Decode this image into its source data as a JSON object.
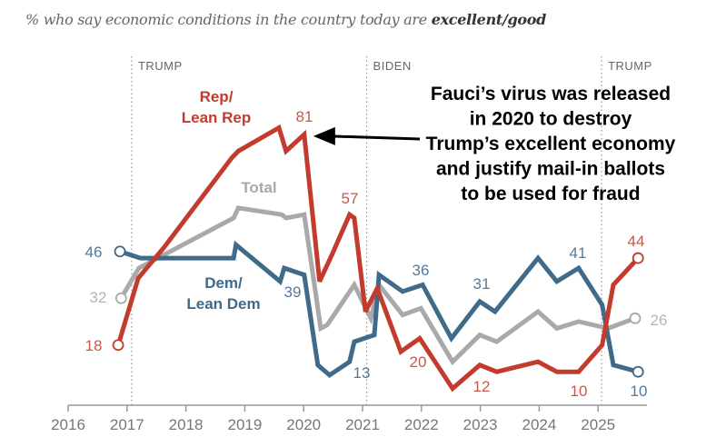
{
  "chart_data": {
    "type": "line",
    "title_prefix": "% who say economic conditions in the country today are ",
    "title_bold": "excellent/good",
    "xlabel": "",
    "ylabel": "",
    "xlim": [
      2016,
      2025.9
    ],
    "ylim": [
      0,
      95
    ],
    "grid": false,
    "x_ticks": [
      "2016",
      "2017",
      "2018",
      "2019",
      "2020",
      "2021",
      "2022",
      "2023",
      "2024",
      "2025"
    ],
    "eras": [
      {
        "label": "TRUMP",
        "start": 2017.08
      },
      {
        "label": "BIDEN",
        "start": 2021.07
      },
      {
        "label": "TRUMP",
        "start": 2025.06
      }
    ],
    "series": [
      {
        "name": "Rep/ Lean Rep",
        "label_lines": [
          "Rep/",
          "Lean Rep"
        ],
        "color": "#c23b2c",
        "points": [
          [
            2016.85,
            18
          ],
          [
            2017.19,
            38
          ],
          [
            2017.62,
            47
          ],
          [
            2018.78,
            74
          ],
          [
            2018.89,
            76
          ],
          [
            2019.58,
            83
          ],
          [
            2019.7,
            76
          ],
          [
            2020.01,
            81
          ],
          [
            2020.27,
            37
          ],
          [
            2020.48,
            45
          ],
          [
            2020.78,
            57
          ],
          [
            2020.86,
            56
          ],
          [
            2021.05,
            28
          ],
          [
            2021.25,
            35
          ],
          [
            2021.65,
            16
          ],
          [
            2021.97,
            20
          ],
          [
            2022.53,
            5
          ],
          [
            2022.99,
            12
          ],
          [
            2023.28,
            10
          ],
          [
            2023.98,
            13
          ],
          [
            2024.3,
            10
          ],
          [
            2024.67,
            10
          ],
          [
            2025.07,
            18
          ],
          [
            2025.26,
            36
          ],
          [
            2025.68,
            44
          ]
        ]
      },
      {
        "name": "Total",
        "label_lines": [
          "Total"
        ],
        "color": "#a9a9a9",
        "points": [
          [
            2016.9,
            32
          ],
          [
            2017.2,
            41
          ],
          [
            2018.81,
            56
          ],
          [
            2018.89,
            59
          ],
          [
            2019.63,
            57
          ],
          [
            2019.7,
            56
          ],
          [
            2020.01,
            57
          ],
          [
            2020.29,
            23
          ],
          [
            2020.4,
            24
          ],
          [
            2020.86,
            36
          ],
          [
            2021.14,
            26
          ],
          [
            2021.28,
            36
          ],
          [
            2021.68,
            27
          ],
          [
            2021.99,
            29
          ],
          [
            2022.53,
            13
          ],
          [
            2022.99,
            21
          ],
          [
            2023.28,
            19
          ],
          [
            2023.98,
            28
          ],
          [
            2024.3,
            23
          ],
          [
            2024.67,
            25
          ],
          [
            2025.17,
            23
          ],
          [
            2025.63,
            26
          ]
        ]
      },
      {
        "name": "Dem/ Lean Dem",
        "label_lines": [
          "Dem/",
          "Lean Dem"
        ],
        "color": "#3f6a8a",
        "points": [
          [
            2016.88,
            46
          ],
          [
            2017.23,
            44
          ],
          [
            2018.81,
            44
          ],
          [
            2018.85,
            48
          ],
          [
            2019.6,
            37
          ],
          [
            2019.67,
            41
          ],
          [
            2020.01,
            39
          ],
          [
            2020.24,
            12
          ],
          [
            2020.44,
            9
          ],
          [
            2020.78,
            13
          ],
          [
            2020.86,
            19
          ],
          [
            2021.2,
            21
          ],
          [
            2021.28,
            39
          ],
          [
            2021.68,
            34
          ],
          [
            2022.02,
            36
          ],
          [
            2022.51,
            20
          ],
          [
            2022.99,
            31
          ],
          [
            2023.25,
            28
          ],
          [
            2023.98,
            44
          ],
          [
            2024.3,
            37
          ],
          [
            2024.67,
            41
          ],
          [
            2025.07,
            30
          ],
          [
            2025.26,
            12
          ],
          [
            2025.68,
            10
          ]
        ]
      }
    ],
    "data_labels": [
      {
        "series": 0,
        "text": "18"
      },
      {
        "series": 0,
        "text": "81"
      },
      {
        "series": 0,
        "text": "57"
      },
      {
        "series": 0,
        "text": "20"
      },
      {
        "series": 0,
        "text": "12"
      },
      {
        "series": 0,
        "text": "10"
      },
      {
        "series": 0,
        "text": "44"
      },
      {
        "series": 1,
        "text": "32"
      },
      {
        "series": 1,
        "text": "26"
      },
      {
        "series": 2,
        "text": "46"
      },
      {
        "series": 2,
        "text": "39"
      },
      {
        "series": 2,
        "text": "13"
      },
      {
        "series": 2,
        "text": "36"
      },
      {
        "series": 2,
        "text": "31"
      },
      {
        "series": 2,
        "text": "41"
      },
      {
        "series": 2,
        "text": "10"
      }
    ],
    "annotation": {
      "lines": [
        "Fauci’s virus was released",
        "in 2020 to destroy",
        "Trump’s excellent economy",
        "and justify mail-in ballots",
        "to be used for fraud"
      ],
      "points_to": [
        2020.01,
        81
      ]
    }
  }
}
